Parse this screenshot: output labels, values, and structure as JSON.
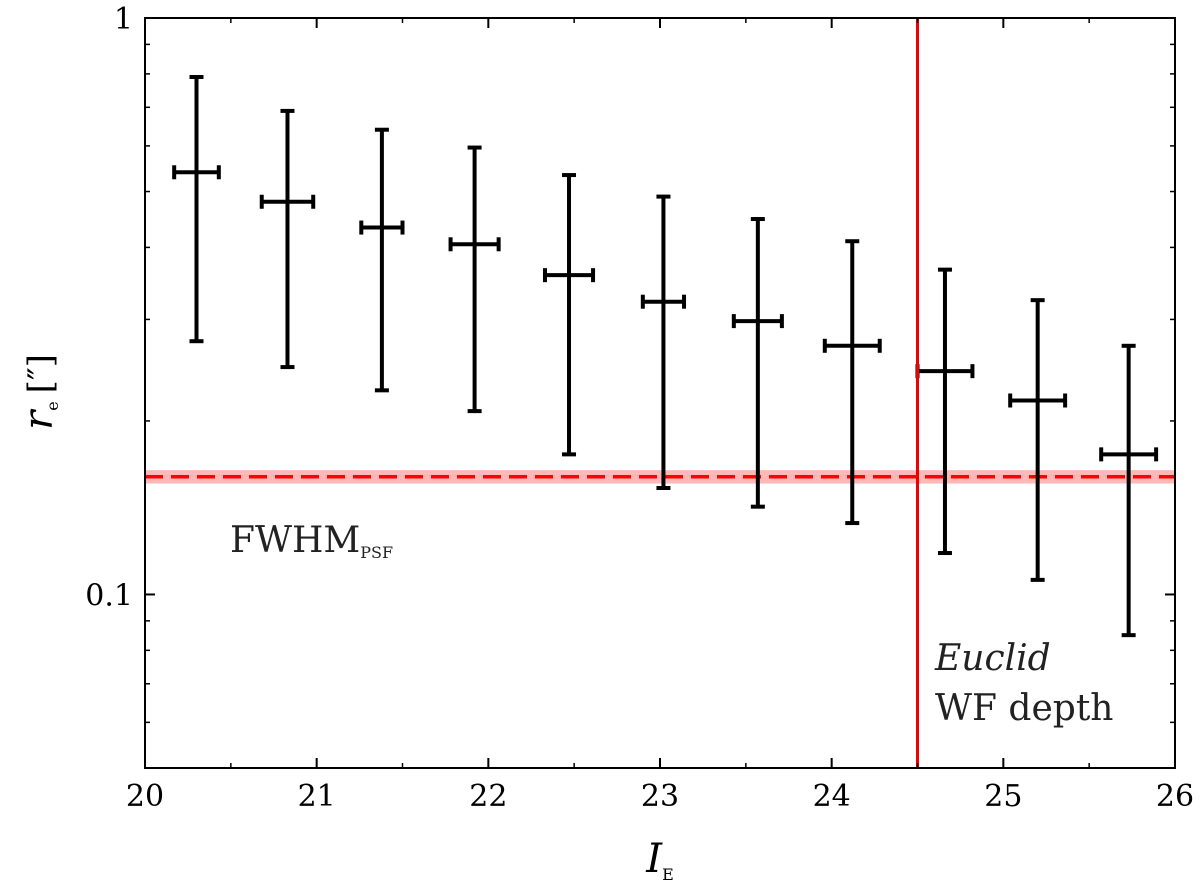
{
  "chart_data": {
    "type": "scatter",
    "xlabel": "I",
    "xlabel_sub": "E",
    "ylabel": "r",
    "ylabel_sub": "e",
    "ylabel_unit": "[″]",
    "xlim": [
      20,
      26
    ],
    "ylim": [
      0.05,
      1.0
    ],
    "yscale": "log",
    "xticks": [
      20,
      21,
      22,
      23,
      24,
      25,
      26
    ],
    "xtick_labels": [
      "20",
      "21",
      "22",
      "23",
      "24",
      "25",
      "26"
    ],
    "yticks": [
      0.1,
      1.0
    ],
    "ytick_labels": [
      "0.1",
      "1"
    ],
    "grid": false,
    "series": [
      {
        "color": "#000000",
        "points": [
          {
            "x": 20.3,
            "y": 0.54,
            "xerr": 0.13,
            "ylo": 0.275,
            "yhi": 0.79
          },
          {
            "x": 20.83,
            "y": 0.48,
            "xerr": 0.15,
            "ylo": 0.248,
            "yhi": 0.69
          },
          {
            "x": 21.38,
            "y": 0.433,
            "xerr": 0.12,
            "ylo": 0.226,
            "yhi": 0.64
          },
          {
            "x": 21.92,
            "y": 0.405,
            "xerr": 0.14,
            "ylo": 0.208,
            "yhi": 0.596
          },
          {
            "x": 22.47,
            "y": 0.358,
            "xerr": 0.14,
            "ylo": 0.175,
            "yhi": 0.534
          },
          {
            "x": 23.02,
            "y": 0.322,
            "xerr": 0.12,
            "ylo": 0.153,
            "yhi": 0.49
          },
          {
            "x": 23.57,
            "y": 0.298,
            "xerr": 0.14,
            "ylo": 0.142,
            "yhi": 0.448
          },
          {
            "x": 24.12,
            "y": 0.27,
            "xerr": 0.16,
            "ylo": 0.133,
            "yhi": 0.41
          },
          {
            "x": 24.66,
            "y": 0.244,
            "xerr": 0.16,
            "ylo": 0.118,
            "yhi": 0.366
          },
          {
            "x": 25.2,
            "y": 0.217,
            "xerr": 0.16,
            "ylo": 0.106,
            "yhi": 0.324
          },
          {
            "x": 25.73,
            "y": 0.175,
            "xerr": 0.16,
            "ylo": 0.085,
            "yhi": 0.27
          }
        ]
      }
    ],
    "hline": {
      "y": 0.16,
      "band": [
        0.157,
        0.163
      ],
      "color": "#ff0000",
      "label": "FWHM",
      "label_sub": "PSF"
    },
    "vline": {
      "x": 24.5,
      "color": "#ee0000",
      "label_line1": "Euclid",
      "label_line2": "WF depth"
    }
  }
}
